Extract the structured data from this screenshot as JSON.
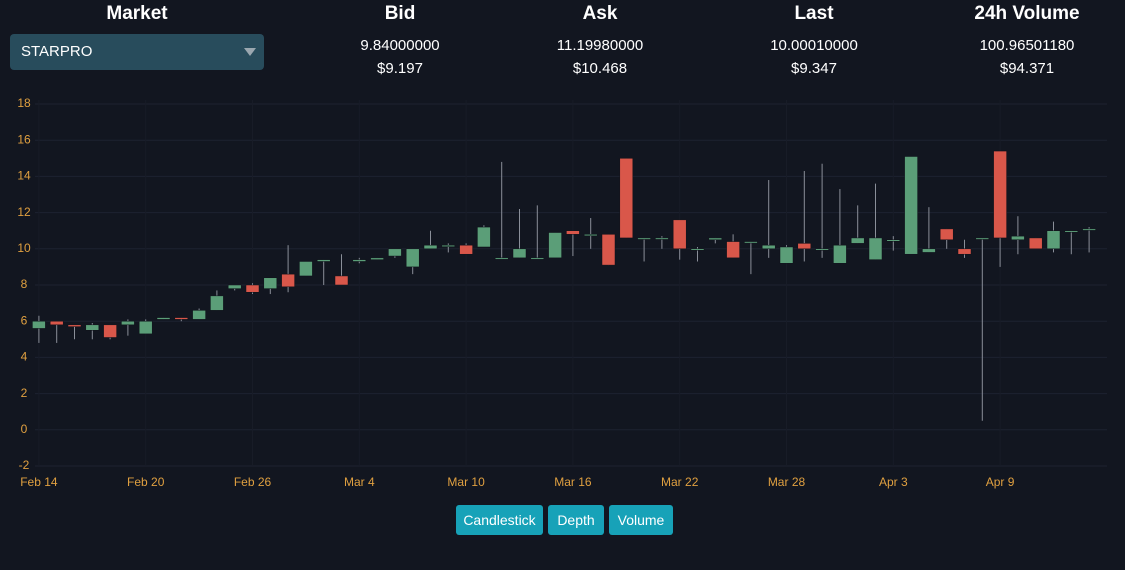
{
  "market": {
    "label": "Market",
    "selected": "STARPRO"
  },
  "stats": [
    {
      "label": "Bid",
      "value": "9.84000000",
      "usd": "$9.197"
    },
    {
      "label": "Ask",
      "value": "11.19980000",
      "usd": "$10.468"
    },
    {
      "label": "Last",
      "value": "10.00010000",
      "usd": "$9.347"
    },
    {
      "label": "24h Volume",
      "value": "100.96501180",
      "usd": "$94.371"
    }
  ],
  "buttons": [
    "Candlestick",
    "Depth",
    "Volume"
  ],
  "chart_data": {
    "type": "candlestick",
    "categories": [
      "Feb 14",
      null,
      null,
      null,
      null,
      null,
      "Feb 20",
      null,
      null,
      null,
      null,
      null,
      "Feb 26",
      null,
      null,
      null,
      null,
      null,
      "Mar 4",
      null,
      null,
      null,
      null,
      null,
      "Mar 10",
      null,
      null,
      null,
      null,
      null,
      "Mar 16",
      null,
      null,
      null,
      null,
      null,
      "Mar 22",
      null,
      null,
      null,
      null,
      null,
      "Mar 28",
      null,
      null,
      null,
      null,
      null,
      "Apr 3",
      null,
      null,
      null,
      null,
      null,
      "Apr 9",
      null,
      null,
      null,
      null,
      null
    ],
    "series": [
      {
        "up_color": "#5b9e78",
        "down_color": "#d9574a",
        "wick_color": "#8a8f99",
        "open": [
          5.6,
          6.0,
          5.8,
          5.5,
          5.8,
          5.8,
          5.3,
          6.1,
          6.2,
          6.1,
          6.6,
          7.8,
          8.0,
          7.8,
          8.6,
          8.5,
          9.3,
          8.5,
          9.3,
          9.4,
          9.6,
          9.0,
          10.0,
          10.2,
          10.2,
          10.1,
          9.5,
          9.5,
          9.5,
          9.5,
          11.0,
          10.8,
          10.8,
          15.0,
          10.6,
          10.6,
          11.6,
          10.0,
          10.5,
          10.4,
          10.4,
          10.0,
          9.2,
          10.3,
          10.0,
          9.2,
          10.3,
          9.4,
          10.5,
          9.7,
          9.8,
          11.1,
          10.0,
          10.6,
          15.4,
          10.5,
          10.6,
          10.0,
          11.0,
          11.1
        ],
        "high": [
          6.3,
          6.0,
          5.8,
          5.9,
          5.8,
          6.1,
          6.1,
          6.2,
          6.2,
          6.7,
          7.7,
          8.0,
          8.1,
          8.4,
          10.2,
          9.3,
          9.4,
          9.7,
          9.5,
          9.5,
          10.0,
          10.0,
          11.0,
          10.3,
          10.3,
          11.3,
          14.8,
          12.2,
          12.4,
          10.9,
          11.0,
          11.7,
          10.8,
          15.0,
          10.6,
          10.7,
          11.6,
          10.1,
          10.6,
          10.8,
          10.4,
          13.8,
          10.2,
          14.3,
          14.7,
          13.3,
          12.4,
          13.6,
          10.7,
          15.1,
          12.3,
          11.1,
          10.5,
          10.6,
          15.4,
          11.8,
          10.6,
          11.5,
          11.0,
          11.2
        ],
        "low": [
          4.8,
          4.8,
          5.0,
          5.0,
          5.0,
          5.2,
          5.3,
          6.1,
          6.0,
          6.1,
          6.6,
          7.7,
          7.5,
          7.5,
          7.6,
          8.5,
          8.0,
          8.0,
          9.2,
          9.4,
          9.5,
          8.6,
          10.0,
          9.8,
          9.7,
          10.1,
          9.5,
          9.5,
          9.5,
          9.5,
          9.6,
          10.0,
          9.1,
          10.6,
          9.3,
          10.0,
          9.4,
          9.3,
          10.3,
          9.5,
          8.6,
          9.5,
          9.2,
          9.3,
          9.5,
          9.2,
          10.3,
          9.4,
          9.9,
          9.7,
          9.8,
          10.0,
          9.5,
          0.5,
          9.0,
          9.7,
          10.0,
          9.8,
          9.7,
          9.8
        ],
        "close": [
          6.0,
          5.8,
          5.7,
          5.8,
          5.1,
          6.0,
          6.0,
          6.2,
          6.1,
          6.6,
          7.4,
          8.0,
          7.6,
          8.4,
          7.9,
          9.3,
          9.4,
          8.0,
          9.4,
          9.5,
          10.0,
          10.0,
          10.2,
          10.2,
          9.7,
          11.2,
          9.5,
          10.0,
          9.5,
          10.9,
          10.8,
          10.8,
          9.1,
          10.6,
          10.6,
          10.6,
          10.0,
          10.0,
          10.6,
          9.5,
          10.4,
          10.2,
          10.1,
          10.0,
          10.0,
          10.2,
          10.6,
          10.6,
          10.5,
          15.1,
          10.0,
          10.5,
          9.7,
          10.6,
          10.6,
          10.7,
          10.0,
          11.0,
          11.0,
          11.1
        ]
      }
    ],
    "ylim": [
      -2,
      18
    ],
    "yticks": [
      -2,
      0,
      2,
      4,
      6,
      8,
      10,
      12,
      14,
      16,
      18
    ],
    "grid": true
  }
}
